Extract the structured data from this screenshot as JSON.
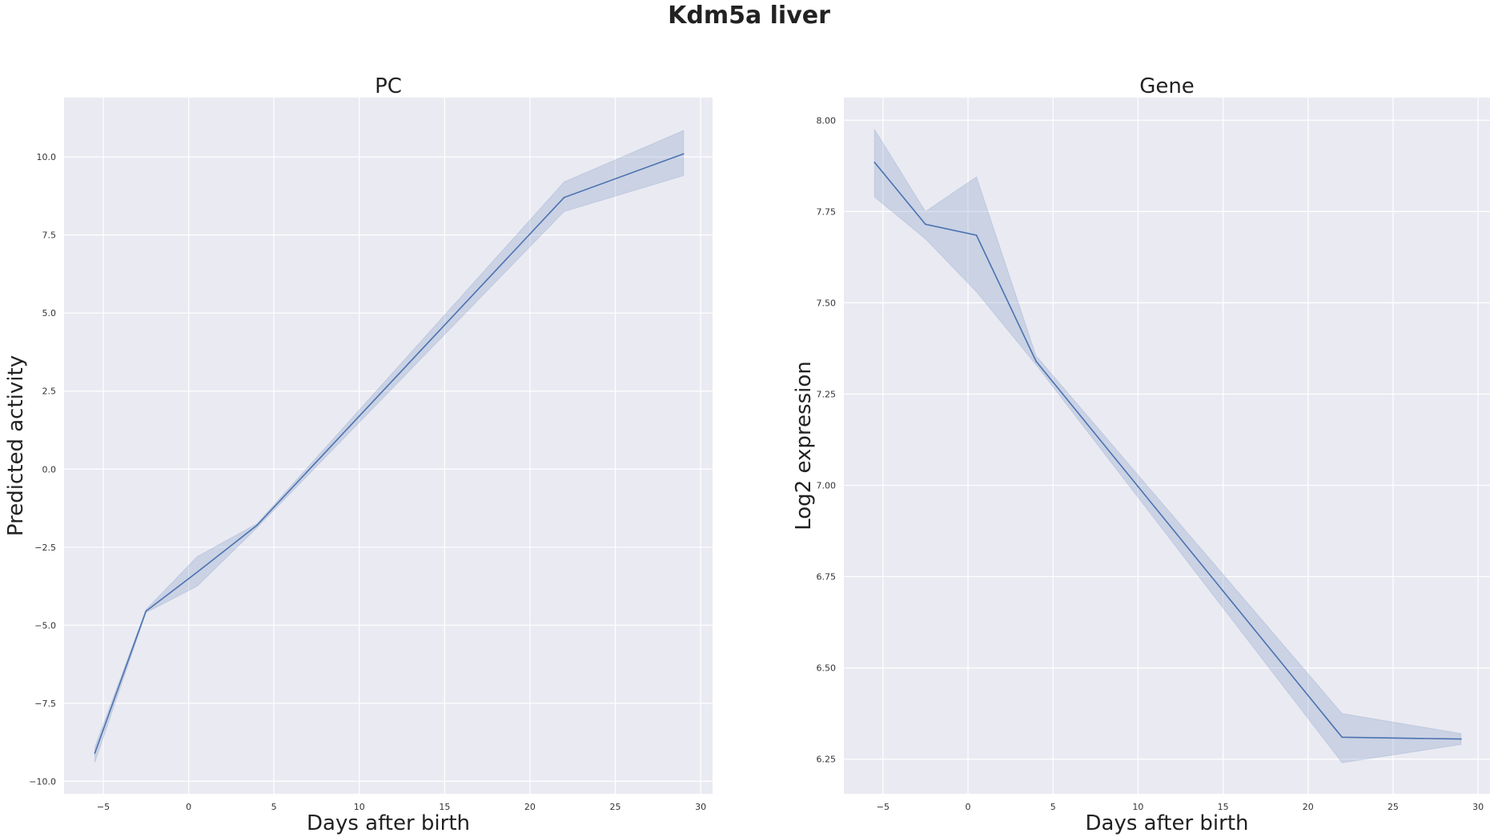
{
  "figure": {
    "title": "Kdm5a liver"
  },
  "colors": {
    "line": "#4c72b0",
    "band": "#4c72b0",
    "panel_bg": "#eaeaf2",
    "grid": "#ffffff"
  },
  "chart_data": [
    {
      "type": "line",
      "title": "PC",
      "xlabel": "Days after birth",
      "ylabel": "Predicted activity",
      "xlim": [
        -7.3,
        30.7
      ],
      "ylim": [
        -10.4,
        11.9
      ],
      "x_ticks": [
        -5,
        0,
        5,
        10,
        15,
        20,
        25,
        30
      ],
      "x_tick_labels": [
        "−5",
        "0",
        "5",
        "10",
        "15",
        "20",
        "25",
        "30"
      ],
      "y_ticks": [
        -10,
        -7.5,
        -5,
        -2.5,
        0,
        2.5,
        5,
        7.5,
        10
      ],
      "y_tick_labels": [
        "−10.0",
        "−7.5",
        "−5.0",
        "−2.5",
        "0.0",
        "2.5",
        "5.0",
        "7.5",
        "10.0"
      ],
      "grid": true,
      "series": [
        {
          "x": [
            -5.5,
            -2.5,
            0.5,
            4,
            22,
            29
          ],
          "y": [
            -9.1,
            -4.55,
            -3.3,
            -1.8,
            8.7,
            10.1
          ],
          "lower": [
            -9.4,
            -4.6,
            -3.75,
            -1.88,
            8.25,
            9.4
          ],
          "upper": [
            -8.9,
            -4.5,
            -2.8,
            -1.75,
            9.2,
            10.85
          ]
        }
      ]
    },
    {
      "type": "line",
      "title": "Gene",
      "xlabel": "Days after birth",
      "ylabel": "Log2 expression",
      "xlim": [
        -7.3,
        30.7
      ],
      "ylim": [
        6.155,
        8.062
      ],
      "x_ticks": [
        -5,
        0,
        5,
        10,
        15,
        20,
        25,
        30
      ],
      "x_tick_labels": [
        "−5",
        "0",
        "5",
        "10",
        "15",
        "20",
        "25",
        "30"
      ],
      "y_ticks": [
        6.25,
        6.5,
        6.75,
        7.0,
        7.25,
        7.5,
        7.75,
        8.0
      ],
      "y_tick_labels": [
        "6.25",
        "6.50",
        "6.75",
        "7.00",
        "7.25",
        "7.50",
        "7.75",
        "8.00"
      ],
      "grid": true,
      "series": [
        {
          "x": [
            -5.5,
            -2.5,
            0.5,
            4,
            22,
            29
          ],
          "y": [
            7.885,
            7.715,
            7.685,
            7.34,
            6.31,
            6.305
          ],
          "lower": [
            7.79,
            7.675,
            7.53,
            7.33,
            6.24,
            6.29
          ],
          "upper": [
            7.975,
            7.75,
            7.845,
            7.355,
            6.375,
            6.32
          ]
        }
      ]
    }
  ]
}
